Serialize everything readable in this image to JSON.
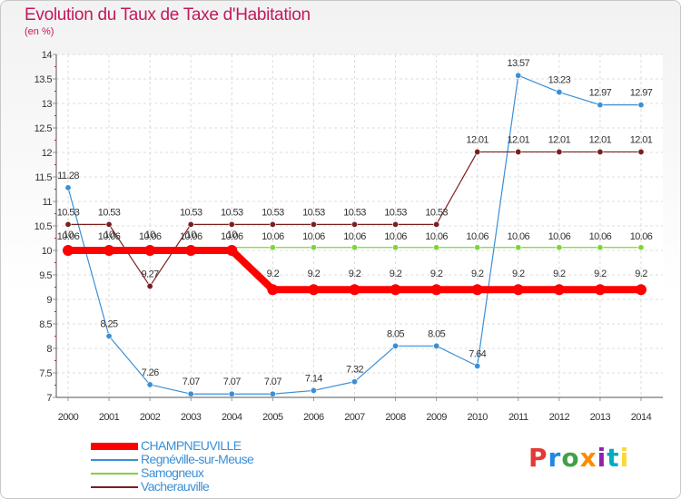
{
  "header": {
    "title": "Evolution du Taux de Taxe d'Habitation",
    "unit": "(en %)"
  },
  "logo": {
    "text": "Proxiti",
    "colors": [
      "#e53935",
      "#1e88e5",
      "#43a047",
      "#fb8c00",
      "#8e24aa",
      "#00acc1",
      "#fdd835"
    ]
  },
  "chart_data": {
    "type": "line",
    "x": [
      "2000",
      "2001",
      "2002",
      "2003",
      "2004",
      "2005",
      "2006",
      "2007",
      "2008",
      "2009",
      "2010",
      "2011",
      "2012",
      "2013",
      "2014"
    ],
    "ylim": [
      7,
      14
    ],
    "yticks": [
      "7",
      "7.5",
      "8",
      "8.5",
      "9",
      "9.5",
      "10",
      "10.5",
      "11",
      "11.5",
      "12",
      "12.5",
      "13",
      "13.5",
      "14"
    ],
    "grid": true,
    "legend_position": "bottom-left",
    "series": [
      {
        "name": "CHAMPNEUVILLE",
        "color": "#ff0000",
        "values": [
          10,
          10,
          10,
          10,
          10,
          9.2,
          9.2,
          9.2,
          9.2,
          9.2,
          9.2,
          9.2,
          9.2,
          9.2,
          9.2
        ],
        "labels": [
          "10",
          "10",
          "10",
          "10",
          "10",
          "9.2",
          "9.2",
          "9.2",
          "9.2",
          "9.2",
          "9.2",
          "9.2",
          "9.2",
          "9.2",
          "9.2"
        ]
      },
      {
        "name": "Regnéville-sur-Meuse",
        "color": "#3a8fd6",
        "values": [
          11.28,
          8.25,
          7.26,
          7.07,
          7.07,
          7.07,
          7.14,
          7.32,
          8.05,
          8.05,
          7.64,
          13.57,
          13.23,
          12.97,
          12.97
        ],
        "labels": [
          "11.28",
          "8.25",
          "7.26",
          "7.07",
          "7.07",
          "7.07",
          "7.14",
          "7.32",
          "8.05",
          "8.05",
          "7.64",
          "13.57",
          "13.23",
          "12.97",
          "12.97"
        ]
      },
      {
        "name": "Samogneux",
        "color": "#7fd43a",
        "values": [
          10.06,
          10.06,
          10.06,
          10.06,
          10.06,
          10.06,
          10.06,
          10.06,
          10.06,
          10.06,
          10.06,
          10.06,
          10.06,
          10.06,
          10.06
        ],
        "labels": [
          "10.06",
          "10.06",
          "10.06",
          "10.06",
          "10.06",
          "10.06",
          "10.06",
          "10.06",
          "10.06",
          "10.06",
          "10.06",
          "10.06",
          "10.06",
          "10.06",
          "10.06"
        ]
      },
      {
        "name": "Vacherauville",
        "color": "#7a1f1f",
        "values": [
          10.53,
          10.53,
          9.27,
          10.53,
          10.53,
          10.53,
          10.53,
          10.53,
          10.53,
          10.53,
          12.01,
          12.01,
          12.01,
          12.01,
          12.01
        ],
        "labels": [
          "10.53",
          "10.53",
          "9.27",
          "10.53",
          "10.53",
          "10.53",
          "10.53",
          "10.53",
          "10.53",
          "10.53",
          "12.01",
          "12.01",
          "12.01",
          "12.01",
          "12.01"
        ]
      }
    ]
  }
}
